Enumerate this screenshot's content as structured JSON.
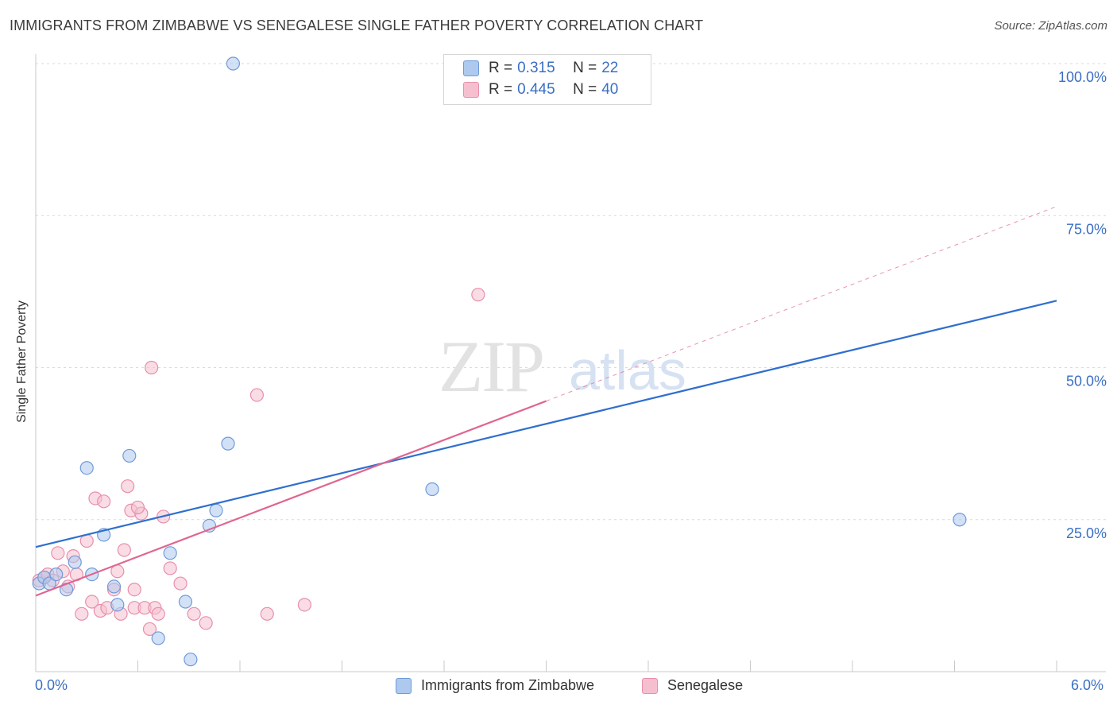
{
  "header": {
    "title": "IMMIGRANTS FROM ZIMBABWE VS SENEGALESE SINGLE FATHER POVERTY CORRELATION CHART",
    "source": "Source: ZipAtlas.com"
  },
  "legend_top": {
    "rows": [
      {
        "r_label": "R =",
        "r_value": "0.315",
        "n_label": "N =",
        "n_value": "22"
      },
      {
        "r_label": "R =",
        "r_value": "0.445",
        "n_label": "N =",
        "n_value": "40"
      }
    ]
  },
  "watermark": {
    "zip": "ZIP",
    "atlas": "atlas"
  },
  "colors": {
    "blue_fill": "#aec9ee",
    "blue_stroke": "#6f9bd8",
    "blue_line": "#2f6fce",
    "pink_fill": "#f6bfd0",
    "pink_stroke": "#e88fab",
    "pink_line": "#e06590",
    "axis_text": "#3a6fc4",
    "grid": "#d9d9d9"
  },
  "chart_data": {
    "type": "scatter",
    "title": "IMMIGRANTS FROM ZIMBABWE VS SENEGALESE SINGLE FATHER POVERTY CORRELATION CHART",
    "xlabel": "",
    "ylabel": "Single Father Poverty",
    "xlim": [
      0,
      6
    ],
    "ylim": [
      0,
      100
    ],
    "x_tick_labels": [
      "0.0%",
      "6.0%"
    ],
    "y_ticks": [
      25,
      50,
      75,
      100
    ],
    "y_tick_labels": [
      "25.0%",
      "50.0%",
      "75.0%",
      "100.0%"
    ],
    "grid": true,
    "legend_position": "bottom",
    "series": [
      {
        "name": "Immigrants from Zimbabwe",
        "color": "blue",
        "r": 0.315,
        "n": 22,
        "points": [
          [
            0.02,
            14.5
          ],
          [
            0.05,
            15.5
          ],
          [
            0.08,
            14.5
          ],
          [
            0.12,
            16.0
          ],
          [
            0.18,
            13.5
          ],
          [
            0.23,
            18.0
          ],
          [
            0.33,
            16.0
          ],
          [
            0.3,
            33.5
          ],
          [
            0.4,
            22.5
          ],
          [
            0.46,
            14.0
          ],
          [
            0.48,
            11.0
          ],
          [
            0.55,
            35.5
          ],
          [
            0.72,
            5.5
          ],
          [
            0.79,
            19.5
          ],
          [
            0.88,
            11.5
          ],
          [
            0.91,
            2.0
          ],
          [
            1.02,
            24.0
          ],
          [
            1.06,
            26.5
          ],
          [
            1.13,
            37.5
          ],
          [
            1.16,
            100.0
          ],
          [
            2.33,
            30.0
          ],
          [
            5.43,
            25.0
          ]
        ],
        "trend": {
          "x": [
            0.0,
            6.0
          ],
          "y": [
            20.5,
            61.0
          ],
          "style": "solid"
        }
      },
      {
        "name": "Senegalese",
        "color": "pink",
        "r": 0.445,
        "n": 40,
        "points": [
          [
            0.02,
            15.0
          ],
          [
            0.05,
            15.5
          ],
          [
            0.07,
            16.0
          ],
          [
            0.1,
            15.0
          ],
          [
            0.13,
            19.5
          ],
          [
            0.16,
            16.5
          ],
          [
            0.19,
            14.0
          ],
          [
            0.22,
            19.0
          ],
          [
            0.24,
            16.0
          ],
          [
            0.27,
            9.5
          ],
          [
            0.3,
            21.5
          ],
          [
            0.33,
            11.5
          ],
          [
            0.35,
            28.5
          ],
          [
            0.38,
            10.0
          ],
          [
            0.4,
            28.0
          ],
          [
            0.42,
            10.5
          ],
          [
            0.46,
            13.5
          ],
          [
            0.48,
            16.5
          ],
          [
            0.5,
            9.5
          ],
          [
            0.52,
            20.0
          ],
          [
            0.54,
            30.5
          ],
          [
            0.56,
            26.5
          ],
          [
            0.58,
            10.5
          ],
          [
            0.62,
            26.0
          ],
          [
            0.64,
            10.5
          ],
          [
            0.67,
            7.0
          ],
          [
            0.68,
            50.0
          ],
          [
            0.7,
            10.5
          ],
          [
            0.72,
            9.5
          ],
          [
            0.75,
            25.5
          ],
          [
            0.79,
            17.0
          ],
          [
            0.85,
            14.5
          ],
          [
            0.93,
            9.5
          ],
          [
            1.0,
            8.0
          ],
          [
            1.3,
            45.5
          ],
          [
            1.36,
            9.5
          ],
          [
            1.58,
            11.0
          ],
          [
            2.6,
            62.0
          ],
          [
            0.6,
            27.0
          ],
          [
            0.58,
            13.5
          ]
        ],
        "trend": {
          "x": [
            0.0,
            3.0
          ],
          "y": [
            12.5,
            44.5
          ],
          "style": "solid"
        },
        "trend_extension": {
          "x": [
            3.0,
            6.0
          ],
          "y": [
            44.5,
            76.5
          ],
          "style": "dashed"
        }
      }
    ]
  }
}
